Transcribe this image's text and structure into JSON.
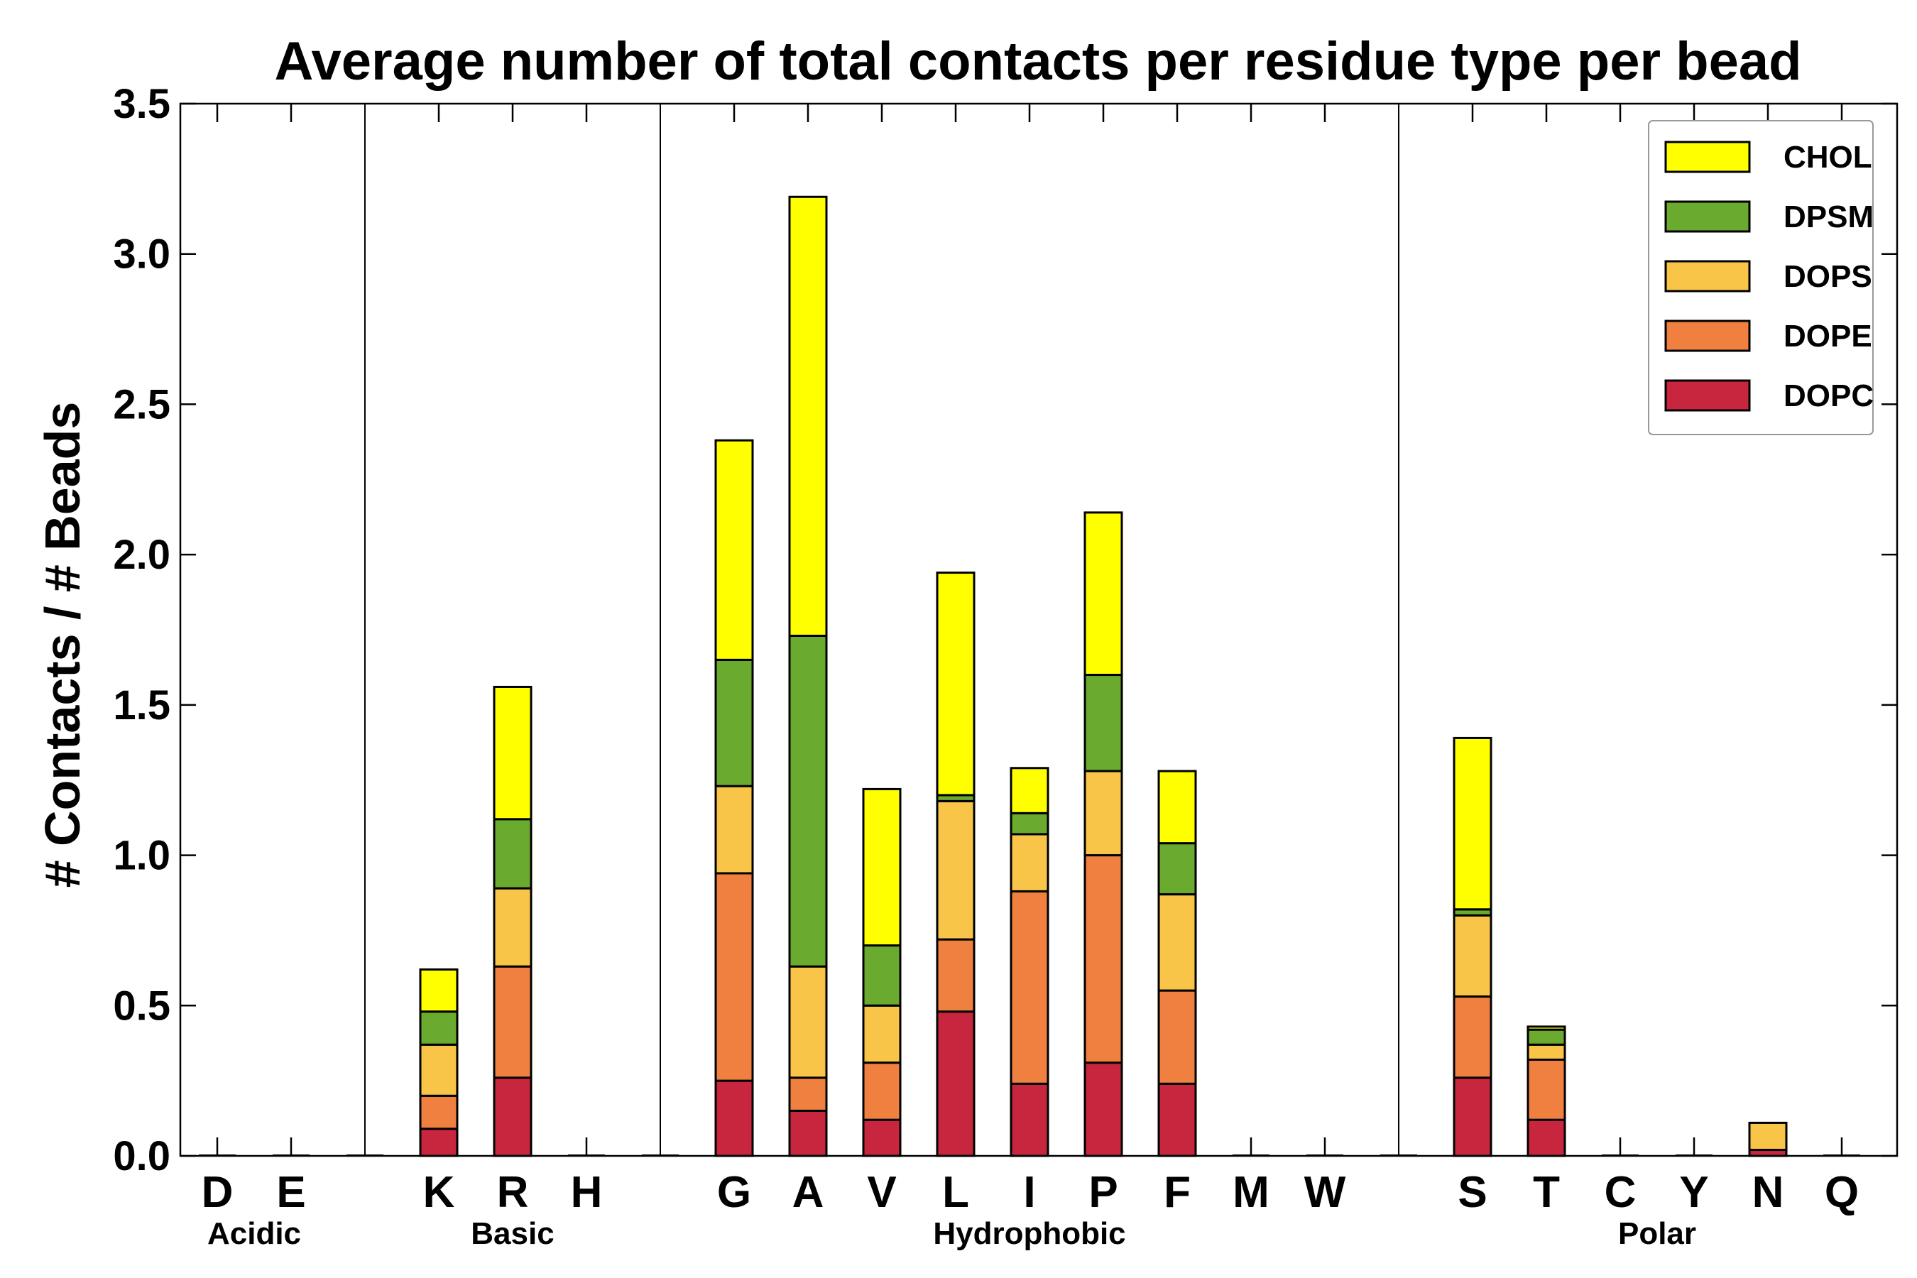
{
  "chart_data": {
    "type": "bar",
    "stacked": true,
    "title": "Average number of total contacts per residue type per bead",
    "xlabel": "",
    "ylabel": "# Contacts / # Beads",
    "ylim": [
      0,
      3.5
    ],
    "yticks": [
      "0.0",
      "0.5",
      "1.0",
      "1.5",
      "2.0",
      "2.5",
      "3.0",
      "3.5"
    ],
    "legend_position": "top-right",
    "slots": [
      "D",
      "E",
      "",
      "K",
      "R",
      "H",
      "",
      "G",
      "A",
      "V",
      "L",
      "I",
      "P",
      "F",
      "M",
      "W",
      "",
      "S",
      "T",
      "C",
      "Y",
      "N",
      "Q"
    ],
    "categories": [
      "D",
      "E",
      "K",
      "R",
      "H",
      "G",
      "A",
      "V",
      "L",
      "I",
      "P",
      "F",
      "M",
      "W",
      "S",
      "T",
      "C",
      "Y",
      "N",
      "Q"
    ],
    "groups": [
      {
        "label": "Acidic",
        "categories": [
          "D",
          "E"
        ]
      },
      {
        "label": "Basic",
        "categories": [
          "K",
          "R",
          "H"
        ]
      },
      {
        "label": "Hydrophobic",
        "categories": [
          "G",
          "A",
          "V",
          "L",
          "I",
          "P",
          "F",
          "M",
          "W"
        ]
      },
      {
        "label": "Polar",
        "categories": [
          "S",
          "T",
          "C",
          "Y",
          "N",
          "Q"
        ]
      }
    ],
    "series": [
      {
        "name": "DOPC",
        "color": "#c8253f",
        "values": [
          0,
          0,
          0.09,
          0.26,
          0,
          0.25,
          0.15,
          0.12,
          0.48,
          0.24,
          0.31,
          0.24,
          0,
          0,
          0.26,
          0.12,
          0,
          0,
          0.02,
          0
        ]
      },
      {
        "name": "DOPE",
        "color": "#ef8040",
        "values": [
          0,
          0,
          0.11,
          0.37,
          0,
          0.69,
          0.11,
          0.19,
          0.24,
          0.64,
          0.69,
          0.31,
          0,
          0,
          0.27,
          0.2,
          0,
          0,
          0,
          0
        ]
      },
      {
        "name": "DOPS",
        "color": "#f9c549",
        "values": [
          0,
          0,
          0.17,
          0.26,
          0,
          0.29,
          0.37,
          0.19,
          0.46,
          0.19,
          0.28,
          0.32,
          0,
          0,
          0.27,
          0.05,
          0,
          0,
          0.09,
          0
        ]
      },
      {
        "name": "DPSM",
        "color": "#6aaa2e",
        "values": [
          0,
          0,
          0.11,
          0.23,
          0,
          0.42,
          1.1,
          0.2,
          0.02,
          0.07,
          0.32,
          0.17,
          0,
          0,
          0.02,
          0.05,
          0,
          0,
          0,
          0
        ]
      },
      {
        "name": "CHOL",
        "color": "#ffff00",
        "values": [
          0,
          0,
          0.14,
          0.44,
          0,
          0.73,
          1.46,
          0.52,
          0.74,
          0.15,
          0.54,
          0.24,
          0,
          0,
          0.57,
          0.01,
          0,
          0,
          0,
          0
        ]
      }
    ]
  }
}
